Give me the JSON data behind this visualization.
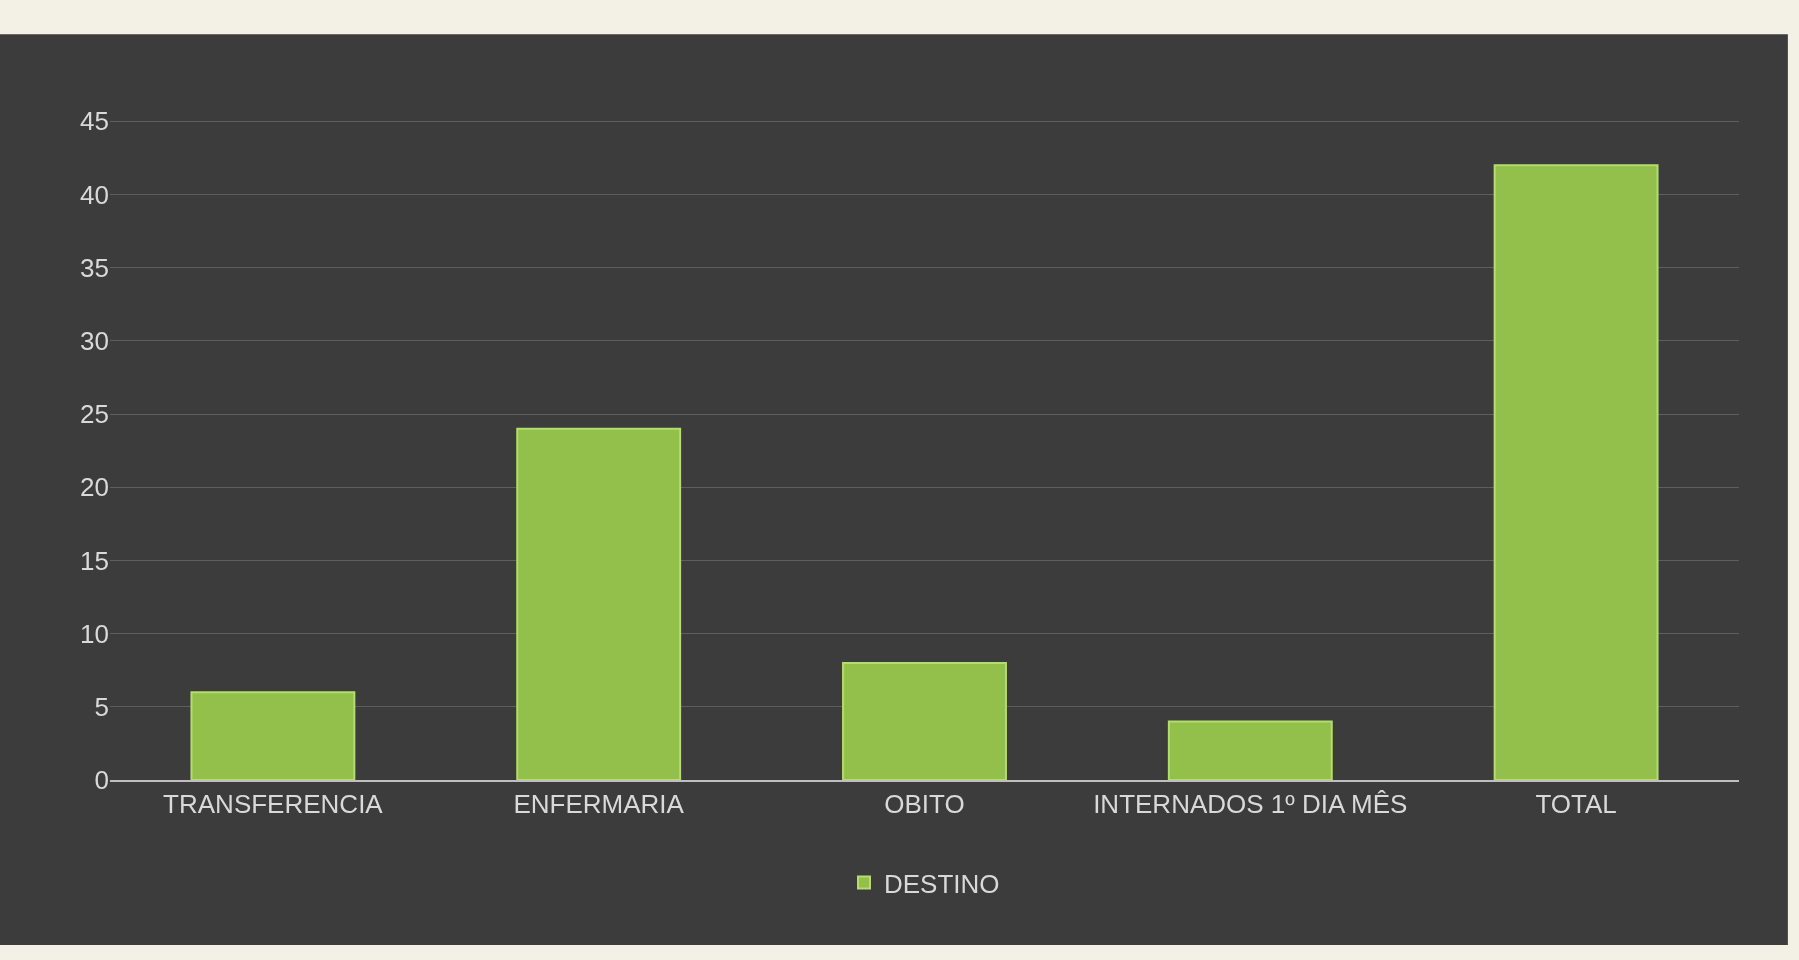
{
  "chart_data": {
    "type": "bar",
    "categories": [
      "TRANSFERENCIA",
      "ENFERMARIA",
      "OBITO",
      "INTERNADOS 1º DIA MÊS",
      "TOTAL"
    ],
    "series": [
      {
        "name": "DESTINO",
        "color": "#92c04a",
        "values": [
          6,
          24,
          8,
          4,
          42
        ]
      }
    ],
    "ylim": [
      0,
      45
    ],
    "yticks": [
      0,
      5,
      10,
      15,
      20,
      25,
      30,
      35,
      40,
      45
    ],
    "grid": "y",
    "legend": "bottom"
  }
}
